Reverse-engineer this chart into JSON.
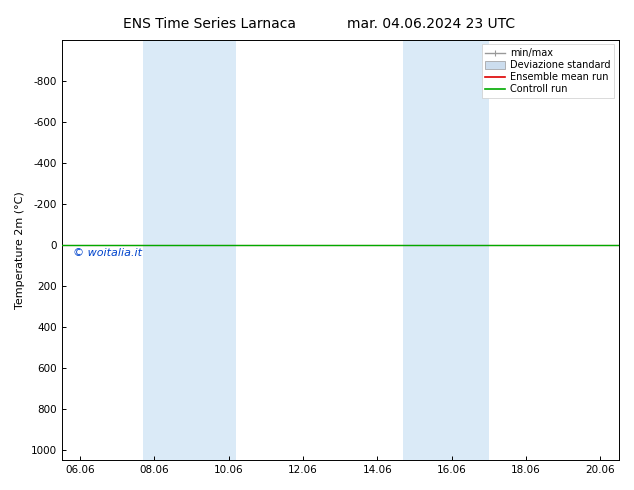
{
  "title_left": "ENS Time Series Larnaca",
  "title_right": "mar. 04.06.2024 23 UTC",
  "ylabel": "Temperature 2m (°C)",
  "ylim_bottom": 1050,
  "ylim_top": -1000,
  "yticks": [
    -800,
    -600,
    -400,
    -200,
    0,
    200,
    400,
    600,
    800,
    1000
  ],
  "xlim": [
    0,
    15.0
  ],
  "xtick_positions": [
    0.5,
    2.5,
    4.5,
    6.5,
    8.5,
    10.5,
    12.5,
    14.5
  ],
  "xtick_labels": [
    "06.06",
    "08.06",
    "10.06",
    "12.06",
    "14.06",
    "16.06",
    "18.06",
    "20.06"
  ],
  "blue_bands": [
    [
      2.2,
      3.0
    ],
    [
      3.0,
      4.7
    ],
    [
      9.2,
      10.2
    ],
    [
      10.2,
      11.5
    ]
  ],
  "band_color": "#daeaf7",
  "green_line_y": 0,
  "red_line_y": 0,
  "green_color": "#00aa00",
  "red_color": "#dd0000",
  "watermark": "© woitalia.it",
  "watermark_color": "#0044cc",
  "legend_entries": [
    "min/max",
    "Deviazione standard",
    "Ensemble mean run",
    "Controll run"
  ],
  "background_color": "#ffffff",
  "title_fontsize": 10,
  "ylabel_fontsize": 8,
  "tick_fontsize": 7.5,
  "legend_fontsize": 7
}
